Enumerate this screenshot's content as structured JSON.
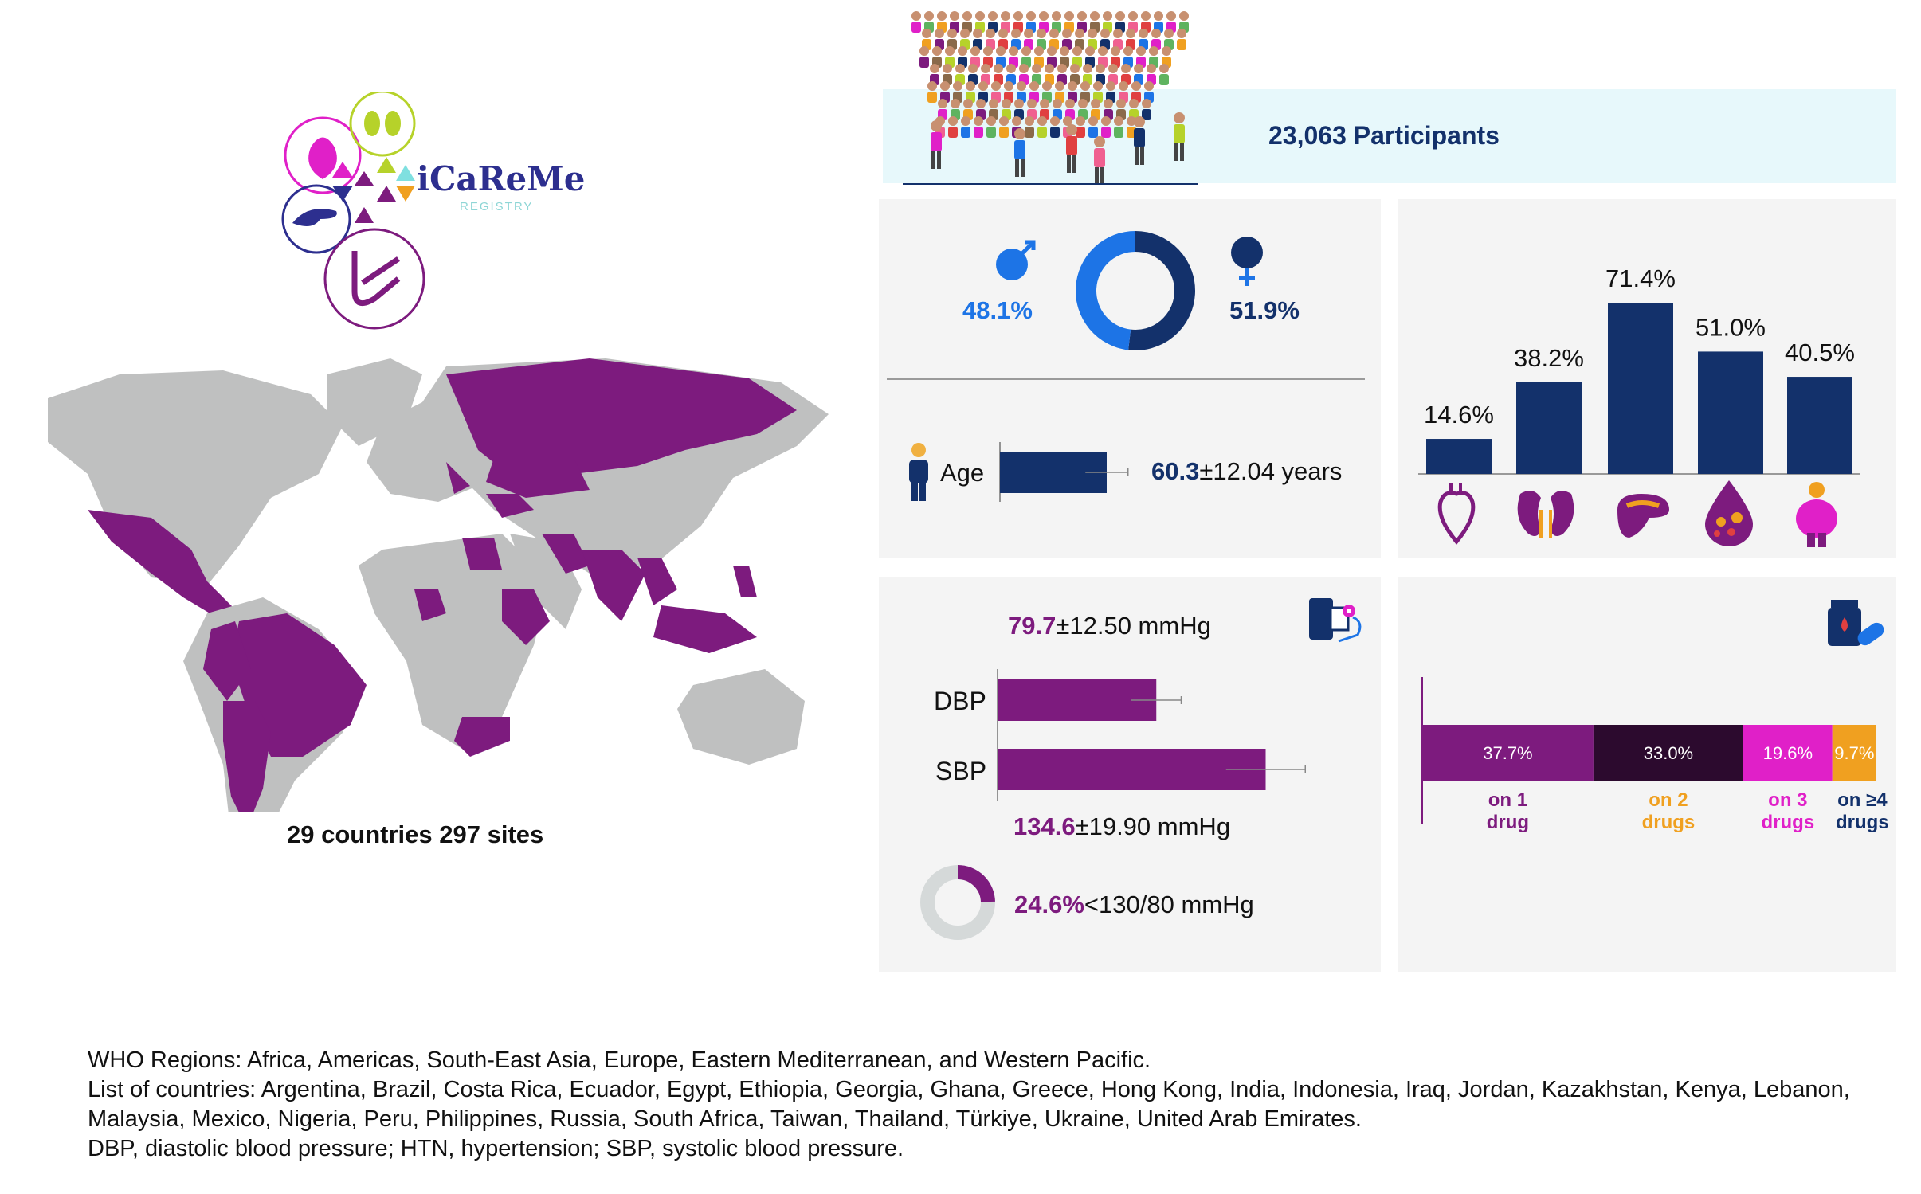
{
  "logo": {
    "name": "iCaReMe",
    "subtitle": "REGISTRY"
  },
  "map": {
    "caption": "29 countries 297 sites"
  },
  "participants": {
    "label": "23,063 Participants"
  },
  "sex": {
    "male_pct": "48.1%",
    "female_pct": "51.9%",
    "male_value": 48.1,
    "female_value": 51.9
  },
  "age": {
    "label": "Age",
    "value": "60.3",
    "sd_text": "±12.04 years"
  },
  "bp": {
    "dbp_value": "79.7",
    "dbp_sd": "±12.50 mmHg",
    "sbp_value": "134.6",
    "sbp_sd": "±19.90 mmHg",
    "dbp_label": "DBP",
    "sbp_label": "SBP",
    "control_pct": "24.6%",
    "control_text": "<130/80 mmHg",
    "control_value": 24.6
  },
  "comorbidity": {
    "icons": [
      "heart-icon",
      "kidney-icon",
      "pancreas-icon",
      "blood-drop-icon",
      "obesity-icon"
    ]
  },
  "drugs": {
    "icon": "medication-icon"
  },
  "chart_data": [
    {
      "type": "bar",
      "title": "",
      "categories": [
        "Heart",
        "Kidney",
        "Pancreas",
        "Blood",
        "Obesity"
      ],
      "values": [
        14.6,
        38.2,
        71.4,
        51.0,
        40.5
      ],
      "labels": [
        "14.6%",
        "38.2%",
        "71.4%",
        "51.0%",
        "40.5%"
      ],
      "ylim": [
        0,
        80
      ],
      "color": "#13316b"
    },
    {
      "type": "bar",
      "orientation": "horizontal-stacked",
      "categories": [
        "on 1 drug",
        "on 2 drugs",
        "on 3 drugs",
        "on ≥4 drugs"
      ],
      "values": [
        37.7,
        33.0,
        19.6,
        9.7
      ],
      "labels": [
        "37.7%",
        "33.0%",
        "19.6%",
        "9.7%"
      ],
      "colors": [
        "#7d1b7e",
        "#2c0a2e",
        "#e020c8",
        "#f0a020"
      ],
      "legend_lines": [
        [
          "on 1",
          "drug"
        ],
        [
          "on 2",
          "drugs"
        ],
        [
          "on 3",
          "drugs"
        ],
        [
          "on ≥4",
          "drugs"
        ]
      ],
      "legend_colors": [
        "#7d1b7e",
        "#f0a020",
        "#e020c8",
        "#13316b"
      ]
    },
    {
      "type": "bar",
      "orientation": "horizontal",
      "categories": [
        "DBP",
        "SBP"
      ],
      "values": [
        79.7,
        134.6
      ],
      "errors": [
        12.5,
        19.9
      ],
      "xlim": [
        0,
        160
      ],
      "color": "#7d1b7e"
    },
    {
      "type": "bar",
      "orientation": "horizontal",
      "categories": [
        "Age"
      ],
      "values": [
        60.3
      ],
      "errors": [
        12.04
      ],
      "xlim": [
        0,
        90
      ],
      "color": "#13316b"
    }
  ],
  "footnotes": {
    "line1": "WHO Regions: Africa, Americas, South-East Asia, Europe, Eastern Mediterranean, and Western Pacific.",
    "line2": "List of countries: Argentina, Brazil, Costa Rica, Ecuador, Egypt, Ethiopia, Georgia, Ghana, Greece, Hong Kong, India, Indonesia, Iraq, Jordan, Kazakhstan, Kenya, Lebanon, Malaysia, Mexico, Nigeria, Peru, Philippines, Russia, South Africa, Taiwan, Thailand, Türkiye, Ukraine, United Arab Emirates.",
    "line3": "DBP, diastolic blood pressure; HTN, hypertension; SBP, systolic blood pressure."
  }
}
